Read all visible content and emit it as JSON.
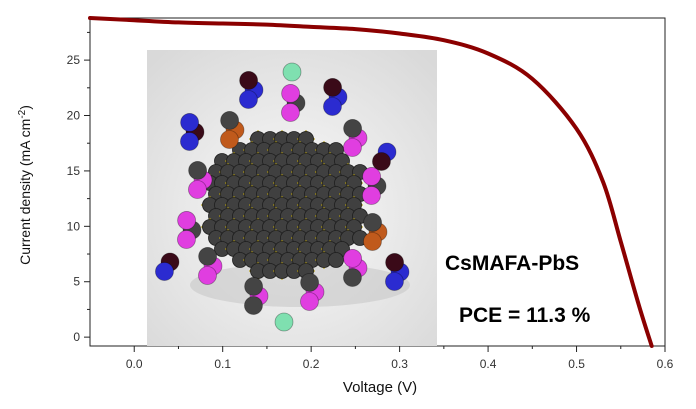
{
  "chart_data": {
    "type": "line",
    "title": "",
    "xlabel": "Voltage (V)",
    "ylabel_main": "Current density (mA cm",
    "ylabel_sup": "-2",
    "ylabel_close": ")",
    "xlim": [
      -0.05,
      0.6
    ],
    "ylim": [
      -0.8,
      28.8
    ],
    "xticks": [
      "0.0",
      "0.1",
      "0.2",
      "0.3",
      "0.4",
      "0.5",
      "0.6"
    ],
    "yticks": [
      "0",
      "5",
      "10",
      "15",
      "20",
      "25"
    ],
    "grid": false,
    "legend": "none",
    "series": [
      {
        "color": "#8b0000",
        "x": [
          -0.05,
          0.0,
          0.05,
          0.1,
          0.15,
          0.2,
          0.25,
          0.3,
          0.35,
          0.4,
          0.45,
          0.5,
          0.53,
          0.55,
          0.57,
          0.585
        ],
        "y": [
          28.8,
          28.6,
          28.4,
          28.3,
          28.2,
          28.0,
          27.8,
          27.4,
          26.8,
          25.6,
          23.3,
          18.8,
          14.0,
          8.6,
          3.0,
          -0.8
        ]
      }
    ],
    "annotations": [
      "CsMAFA-PbS",
      "PCE = 11.3 %"
    ]
  },
  "inset": {
    "icon": "nanocrystal-ligand-illustration"
  }
}
